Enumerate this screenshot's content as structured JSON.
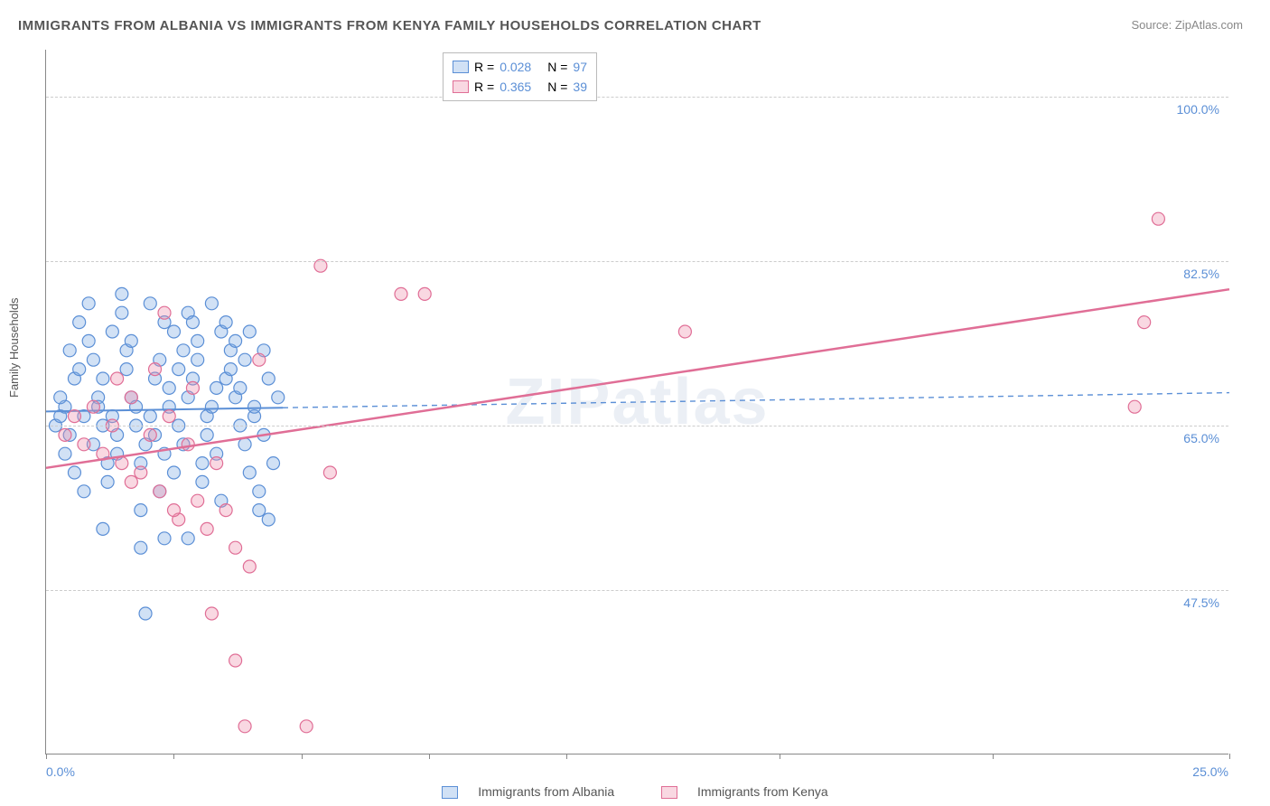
{
  "title": "IMMIGRANTS FROM ALBANIA VS IMMIGRANTS FROM KENYA FAMILY HOUSEHOLDS CORRELATION CHART",
  "source": "Source: ZipAtlas.com",
  "ylabel": "Family Households",
  "watermark": "ZIPatlas",
  "chart": {
    "type": "scatter",
    "xlim": [
      0,
      25
    ],
    "ylim": [
      30,
      105
    ],
    "ytick_lines": [
      47.5,
      65.0,
      82.5,
      100.0
    ],
    "xtick_positions": [
      0,
      2.7,
      5.4,
      8.1,
      11.0,
      15.5,
      20.0,
      25.0
    ],
    "x_min_label": "0.0%",
    "x_max_label": "25.0%",
    "grid_color": "#cccccc",
    "axis_label_color": "#5b8fd6",
    "background_color": "#ffffff",
    "marker_radius": 7,
    "marker_stroke_width": 1.2,
    "series": [
      {
        "name": "Immigrants from Albania",
        "fill": "rgba(123,169,226,0.35)",
        "stroke": "#5b8fd6",
        "R": "0.028",
        "N": "97",
        "trend": {
          "y_start": 66.5,
          "y_end": 68.5,
          "solid_until_x": 5.0,
          "width": 2
        },
        "points": [
          [
            0.2,
            65
          ],
          [
            0.3,
            66
          ],
          [
            0.4,
            67
          ],
          [
            0.5,
            64
          ],
          [
            0.3,
            68
          ],
          [
            0.6,
            70
          ],
          [
            0.4,
            62
          ],
          [
            0.7,
            71
          ],
          [
            0.5,
            73
          ],
          [
            0.8,
            66
          ],
          [
            0.6,
            60
          ],
          [
            0.9,
            74
          ],
          [
            0.7,
            76
          ],
          [
            1.0,
            63
          ],
          [
            0.8,
            58
          ],
          [
            1.1,
            68
          ],
          [
            0.9,
            78
          ],
          [
            1.2,
            65
          ],
          [
            1.0,
            72
          ],
          [
            1.3,
            61
          ],
          [
            1.1,
            67
          ],
          [
            1.4,
            75
          ],
          [
            1.2,
            70
          ],
          [
            1.5,
            64
          ],
          [
            1.3,
            59
          ],
          [
            1.6,
            77
          ],
          [
            1.4,
            66
          ],
          [
            1.7,
            73
          ],
          [
            1.5,
            62
          ],
          [
            1.8,
            68
          ],
          [
            1.6,
            79
          ],
          [
            1.9,
            65
          ],
          [
            1.7,
            71
          ],
          [
            2.0,
            56
          ],
          [
            1.8,
            74
          ],
          [
            2.1,
            63
          ],
          [
            1.9,
            67
          ],
          [
            2.2,
            78
          ],
          [
            2.0,
            61
          ],
          [
            2.3,
            70
          ],
          [
            2.1,
            45
          ],
          [
            2.4,
            72
          ],
          [
            2.2,
            66
          ],
          [
            2.5,
            76
          ],
          [
            2.3,
            64
          ],
          [
            2.6,
            69
          ],
          [
            2.4,
            58
          ],
          [
            2.7,
            75
          ],
          [
            2.5,
            62
          ],
          [
            2.8,
            71
          ],
          [
            2.6,
            67
          ],
          [
            2.9,
            73
          ],
          [
            2.7,
            60
          ],
          [
            3.0,
            77
          ],
          [
            2.8,
            65
          ],
          [
            3.1,
            70
          ],
          [
            2.9,
            63
          ],
          [
            3.2,
            74
          ],
          [
            3.0,
            68
          ],
          [
            3.3,
            59
          ],
          [
            3.1,
            76
          ],
          [
            3.4,
            66
          ],
          [
            3.2,
            72
          ],
          [
            3.5,
            78
          ],
          [
            3.3,
            61
          ],
          [
            3.6,
            69
          ],
          [
            3.4,
            64
          ],
          [
            3.7,
            75
          ],
          [
            3.5,
            67
          ],
          [
            3.8,
            70
          ],
          [
            3.6,
            62
          ],
          [
            3.9,
            73
          ],
          [
            3.7,
            57
          ],
          [
            4.0,
            68
          ],
          [
            3.8,
            76
          ],
          [
            4.1,
            65
          ],
          [
            3.9,
            71
          ],
          [
            4.2,
            63
          ],
          [
            4.0,
            74
          ],
          [
            4.3,
            60
          ],
          [
            4.1,
            69
          ],
          [
            4.4,
            66
          ],
          [
            4.2,
            72
          ],
          [
            4.5,
            58
          ],
          [
            4.3,
            75
          ],
          [
            4.6,
            64
          ],
          [
            4.4,
            67
          ],
          [
            4.7,
            70
          ],
          [
            4.5,
            56
          ],
          [
            4.8,
            61
          ],
          [
            4.6,
            73
          ],
          [
            4.9,
            68
          ],
          [
            4.7,
            55
          ],
          [
            1.2,
            54
          ],
          [
            3.0,
            53
          ],
          [
            2.0,
            52
          ],
          [
            2.5,
            53
          ]
        ]
      },
      {
        "name": "Immigrants from Kenya",
        "fill": "rgba(239,142,173,0.35)",
        "stroke": "#e06e96",
        "R": "0.365",
        "N": "39",
        "trend": {
          "y_start": 60.5,
          "y_end": 79.5,
          "solid_until_x": 25.0,
          "width": 2.5
        },
        "points": [
          [
            0.4,
            64
          ],
          [
            0.6,
            66
          ],
          [
            0.8,
            63
          ],
          [
            1.0,
            67
          ],
          [
            1.2,
            62
          ],
          [
            1.4,
            65
          ],
          [
            1.6,
            61
          ],
          [
            1.8,
            68
          ],
          [
            2.0,
            60
          ],
          [
            2.2,
            64
          ],
          [
            2.4,
            58
          ],
          [
            2.6,
            66
          ],
          [
            2.8,
            55
          ],
          [
            3.0,
            63
          ],
          [
            3.2,
            57
          ],
          [
            3.4,
            54
          ],
          [
            3.6,
            61
          ],
          [
            3.8,
            56
          ],
          [
            4.0,
            52
          ],
          [
            4.3,
            50
          ],
          [
            2.5,
            77
          ],
          [
            3.5,
            45
          ],
          [
            4.0,
            40
          ],
          [
            5.5,
            33
          ],
          [
            4.2,
            33
          ],
          [
            5.8,
            82
          ],
          [
            7.5,
            79
          ],
          [
            8.0,
            79
          ],
          [
            6.0,
            60
          ],
          [
            4.5,
            72
          ],
          [
            13.5,
            75
          ],
          [
            23.0,
            67
          ],
          [
            23.5,
            87
          ],
          [
            23.2,
            76
          ],
          [
            1.5,
            70
          ],
          [
            2.3,
            71
          ],
          [
            3.1,
            69
          ],
          [
            1.8,
            59
          ],
          [
            2.7,
            56
          ]
        ]
      }
    ]
  },
  "legend_top": {
    "r_label": "R =",
    "n_label": "N ="
  },
  "legend_bottom": {
    "label1": "Immigrants from Albania",
    "label2": "Immigrants from Kenya"
  }
}
